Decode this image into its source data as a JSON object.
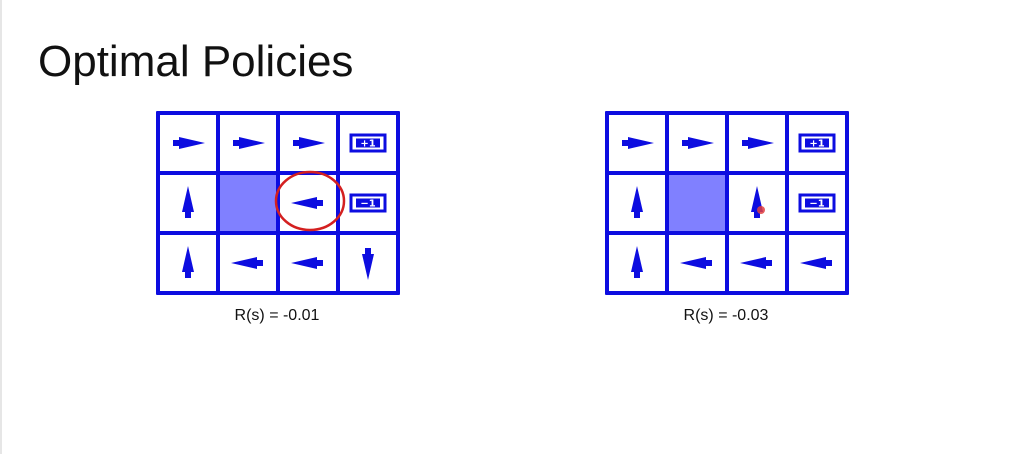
{
  "title": "Optimal Policies",
  "colors": {
    "grid_line": "#0d0de0",
    "arrow": "#0d0de0",
    "wall_fill": "#8080ff",
    "highlight_circle": "#d42020",
    "cursor_dot": "#e04040"
  },
  "policies": [
    {
      "id": "left",
      "caption": "R(s) = -0.01",
      "cells": [
        [
          "right",
          "right",
          "right",
          "+1"
        ],
        [
          "up",
          "wall",
          "left",
          "−1"
        ],
        [
          "up",
          "left",
          "left",
          "down"
        ]
      ],
      "highlighted_cell": [
        1,
        2
      ]
    },
    {
      "id": "right",
      "caption": "R(s) = -0.03",
      "cells": [
        [
          "right",
          "right",
          "right",
          "+1"
        ],
        [
          "up",
          "wall",
          "up",
          "−1"
        ],
        [
          "up",
          "left",
          "left",
          "left"
        ]
      ],
      "highlighted_cell": null,
      "cursor_cell": [
        1,
        2
      ]
    }
  ]
}
